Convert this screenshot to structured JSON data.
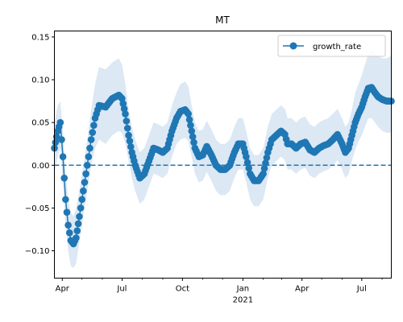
{
  "chart_data": {
    "type": "line",
    "title": "MT",
    "xlabel": "",
    "ylabel": "",
    "x_start": "2020-03-20",
    "x_end": "2021-08-15",
    "ylim": [
      -0.132,
      0.157
    ],
    "y_ticks": [
      -0.1,
      -0.05,
      0.0,
      0.05,
      0.1,
      0.15
    ],
    "y_tick_labels": [
      "−0.10",
      "−0.05",
      "0.00",
      "0.05",
      "0.10",
      "0.15"
    ],
    "x_major_ticks": [
      {
        "date": "2020-04-01",
        "label": "Apr"
      },
      {
        "date": "2020-07-01",
        "label": "Jul"
      },
      {
        "date": "2020-10-01",
        "label": "Oct"
      },
      {
        "date": "2021-01-01",
        "label": "Jan"
      },
      {
        "date": "2021-04-01",
        "label": "Apr"
      },
      {
        "date": "2021-07-01",
        "label": "Jul"
      }
    ],
    "x_minor_ticks": [
      "2020-05-01",
      "2020-06-01",
      "2020-08-01",
      "2020-09-01",
      "2020-11-01",
      "2020-12-01",
      "2021-02-01",
      "2021-03-01",
      "2021-05-01",
      "2021-06-01",
      "2021-08-01"
    ],
    "year_label": {
      "date": "2021-01-01",
      "label": "2021"
    },
    "reference_line": 0,
    "grid": false,
    "legend": {
      "position": "top-right",
      "entries": [
        "growth_rate"
      ]
    },
    "colors": {
      "series": "#1f77b4",
      "band": "#dce8f4",
      "reference": "#1f77b4"
    },
    "series": [
      {
        "name": "growth_rate",
        "points": [
          [
            "2020-03-20",
            0.02,
            0.05,
            -0.01
          ],
          [
            "2020-03-25",
            0.04,
            0.07,
            0.01
          ],
          [
            "2020-03-29",
            0.05,
            0.075,
            0.02
          ],
          [
            "2020-04-02",
            0.01,
            0.04,
            -0.02
          ],
          [
            "2020-04-06",
            -0.04,
            -0.01,
            -0.07
          ],
          [
            "2020-04-10",
            -0.07,
            -0.04,
            -0.1
          ],
          [
            "2020-04-14",
            -0.088,
            -0.055,
            -0.118
          ],
          [
            "2020-04-18",
            -0.092,
            -0.06,
            -0.12
          ],
          [
            "2020-04-22",
            -0.085,
            -0.05,
            -0.115
          ],
          [
            "2020-04-27",
            -0.06,
            -0.03,
            -0.09
          ],
          [
            "2020-05-03",
            -0.03,
            0.0,
            -0.06
          ],
          [
            "2020-05-09",
            0.0,
            0.03,
            -0.03
          ],
          [
            "2020-05-15",
            0.03,
            0.065,
            0.0
          ],
          [
            "2020-05-21",
            0.055,
            0.095,
            0.02
          ],
          [
            "2020-05-27",
            0.07,
            0.115,
            0.03
          ],
          [
            "2020-06-06",
            0.068,
            0.112,
            0.025
          ],
          [
            "2020-06-16",
            0.078,
            0.12,
            0.035
          ],
          [
            "2020-06-26",
            0.082,
            0.125,
            0.04
          ],
          [
            "2020-07-01",
            0.078,
            0.118,
            0.038
          ],
          [
            "2020-07-06",
            0.06,
            0.095,
            0.025
          ],
          [
            "2020-07-11",
            0.035,
            0.065,
            0.005
          ],
          [
            "2020-07-16",
            0.015,
            0.045,
            -0.015
          ],
          [
            "2020-07-21",
            0.0,
            0.03,
            -0.03
          ],
          [
            "2020-07-28",
            -0.015,
            0.015,
            -0.045
          ],
          [
            "2020-08-04",
            -0.01,
            0.02,
            -0.04
          ],
          [
            "2020-08-11",
            0.005,
            0.035,
            -0.025
          ],
          [
            "2020-08-18",
            0.02,
            0.05,
            -0.01
          ],
          [
            "2020-08-25",
            0.018,
            0.048,
            -0.012
          ],
          [
            "2020-09-01",
            0.015,
            0.045,
            -0.015
          ],
          [
            "2020-09-08",
            0.02,
            0.05,
            -0.01
          ],
          [
            "2020-09-15",
            0.04,
            0.07,
            0.01
          ],
          [
            "2020-09-22",
            0.055,
            0.085,
            0.025
          ],
          [
            "2020-09-28",
            0.063,
            0.095,
            0.03
          ],
          [
            "2020-10-05",
            0.065,
            0.098,
            0.032
          ],
          [
            "2020-10-10",
            0.06,
            0.092,
            0.028
          ],
          [
            "2020-10-15",
            0.04,
            0.07,
            0.01
          ],
          [
            "2020-10-20",
            0.02,
            0.05,
            -0.01
          ],
          [
            "2020-10-26",
            0.01,
            0.04,
            -0.02
          ],
          [
            "2020-11-01",
            0.012,
            0.042,
            -0.018
          ],
          [
            "2020-11-07",
            0.022,
            0.052,
            -0.008
          ],
          [
            "2020-11-14",
            0.012,
            0.042,
            -0.018
          ],
          [
            "2020-11-21",
            0.0,
            0.03,
            -0.03
          ],
          [
            "2020-11-28",
            -0.005,
            0.025,
            -0.035
          ],
          [
            "2020-12-05",
            -0.005,
            0.025,
            -0.035
          ],
          [
            "2020-12-12",
            0.0,
            0.03,
            -0.03
          ],
          [
            "2020-12-19",
            0.015,
            0.045,
            -0.015
          ],
          [
            "2020-12-25",
            0.025,
            0.055,
            -0.005
          ],
          [
            "2021-01-01",
            0.025,
            0.055,
            -0.005
          ],
          [
            "2021-01-06",
            0.01,
            0.04,
            -0.02
          ],
          [
            "2021-01-12",
            -0.01,
            0.02,
            -0.04
          ],
          [
            "2021-01-18",
            -0.018,
            0.012,
            -0.048
          ],
          [
            "2021-01-25",
            -0.018,
            0.012,
            -0.048
          ],
          [
            "2021-02-01",
            -0.01,
            0.02,
            -0.04
          ],
          [
            "2021-02-08",
            0.015,
            0.045,
            -0.015
          ],
          [
            "2021-02-14",
            0.03,
            0.06,
            0.0
          ],
          [
            "2021-02-21",
            0.035,
            0.065,
            0.005
          ],
          [
            "2021-02-28",
            0.04,
            0.07,
            0.01
          ],
          [
            "2021-03-06",
            0.036,
            0.066,
            0.006
          ],
          [
            "2021-03-10",
            0.025,
            0.055,
            -0.005
          ],
          [
            "2021-03-16",
            0.025,
            0.055,
            -0.005
          ],
          [
            "2021-03-23",
            0.02,
            0.05,
            -0.01
          ],
          [
            "2021-03-30",
            0.025,
            0.055,
            -0.005
          ],
          [
            "2021-04-06",
            0.027,
            0.057,
            -0.003
          ],
          [
            "2021-04-13",
            0.018,
            0.048,
            -0.012
          ],
          [
            "2021-04-20",
            0.015,
            0.045,
            -0.015
          ],
          [
            "2021-04-27",
            0.02,
            0.05,
            -0.01
          ],
          [
            "2021-05-04",
            0.023,
            0.053,
            -0.007
          ],
          [
            "2021-05-11",
            0.025,
            0.055,
            -0.005
          ],
          [
            "2021-05-18",
            0.03,
            0.06,
            0.0
          ],
          [
            "2021-05-25",
            0.036,
            0.066,
            0.006
          ],
          [
            "2021-06-01",
            0.025,
            0.055,
            -0.005
          ],
          [
            "2021-06-06",
            0.015,
            0.045,
            -0.015
          ],
          [
            "2021-06-11",
            0.02,
            0.05,
            -0.01
          ],
          [
            "2021-06-16",
            0.035,
            0.065,
            0.005
          ],
          [
            "2021-06-21",
            0.05,
            0.085,
            0.018
          ],
          [
            "2021-06-26",
            0.06,
            0.095,
            0.028
          ],
          [
            "2021-07-01",
            0.068,
            0.105,
            0.035
          ],
          [
            "2021-07-06",
            0.08,
            0.118,
            0.045
          ],
          [
            "2021-07-11",
            0.09,
            0.13,
            0.055
          ],
          [
            "2021-07-16",
            0.091,
            0.135,
            0.055
          ],
          [
            "2021-07-21",
            0.085,
            0.13,
            0.05
          ],
          [
            "2021-07-26",
            0.08,
            0.128,
            0.045
          ],
          [
            "2021-08-01",
            0.077,
            0.125,
            0.04
          ],
          [
            "2021-08-08",
            0.075,
            0.125,
            0.038
          ],
          [
            "2021-08-15",
            0.075,
            0.128,
            0.038
          ]
        ]
      }
    ]
  }
}
